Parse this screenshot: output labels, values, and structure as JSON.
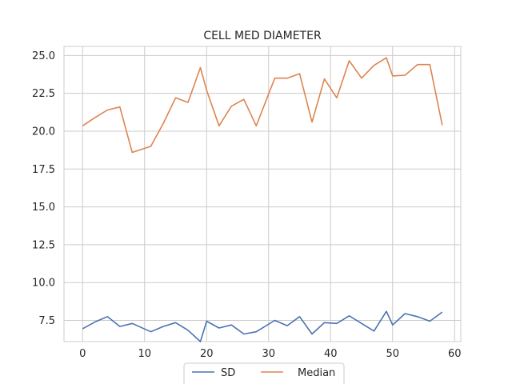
{
  "chart_data": {
    "type": "line",
    "title": "CELL MED DIAMETER",
    "xlabel": "",
    "ylabel": "",
    "xlim": [
      -3,
      61
    ],
    "ylim": [
      6.1,
      25.6
    ],
    "xticks": [
      0,
      10,
      20,
      30,
      40,
      50,
      60
    ],
    "yticks": [
      7.5,
      10.0,
      12.5,
      15.0,
      17.5,
      20.0,
      22.5,
      25.0
    ],
    "xtick_labels": [
      "0",
      "10",
      "20",
      "30",
      "40",
      "50",
      "60"
    ],
    "ytick_labels": [
      "7.5",
      "10.0",
      "12.5",
      "15.0",
      "17.5",
      "20.0",
      "22.5",
      "25.0"
    ],
    "grid": true,
    "legend_position": "bottom-center",
    "series": [
      {
        "name": "SD",
        "color": "#4c72b0",
        "x": [
          0,
          2,
          4,
          6,
          8,
          11,
          13,
          15,
          17,
          19,
          20,
          22,
          24,
          26,
          28,
          31,
          33,
          35,
          37,
          39,
          41,
          43,
          45,
          47,
          49,
          50,
          52,
          54,
          56,
          58
        ],
        "y": [
          6.95,
          7.4,
          7.75,
          7.1,
          7.3,
          6.75,
          7.1,
          7.35,
          6.85,
          6.1,
          7.45,
          7.0,
          7.2,
          6.6,
          6.75,
          7.5,
          7.15,
          7.75,
          6.6,
          7.35,
          7.3,
          7.8,
          7.3,
          6.8,
          8.1,
          7.2,
          7.95,
          7.75,
          7.45,
          8.05
        ]
      },
      {
        "name": "Median",
        "color": "#dd8452",
        "x": [
          0,
          2,
          4,
          6,
          8,
          11,
          13,
          15,
          17,
          19,
          20,
          22,
          24,
          26,
          28,
          31,
          33,
          35,
          37,
          39,
          41,
          43,
          45,
          47,
          49,
          50,
          52,
          54,
          56,
          58
        ],
        "y": [
          20.35,
          20.9,
          21.4,
          21.6,
          18.6,
          19.0,
          20.5,
          22.2,
          21.9,
          24.2,
          22.7,
          20.35,
          21.65,
          22.1,
          20.35,
          23.5,
          23.5,
          23.8,
          20.6,
          23.45,
          22.2,
          24.65,
          23.5,
          24.35,
          24.85,
          23.65,
          23.7,
          24.4,
          24.4,
          20.4
        ]
      }
    ]
  }
}
